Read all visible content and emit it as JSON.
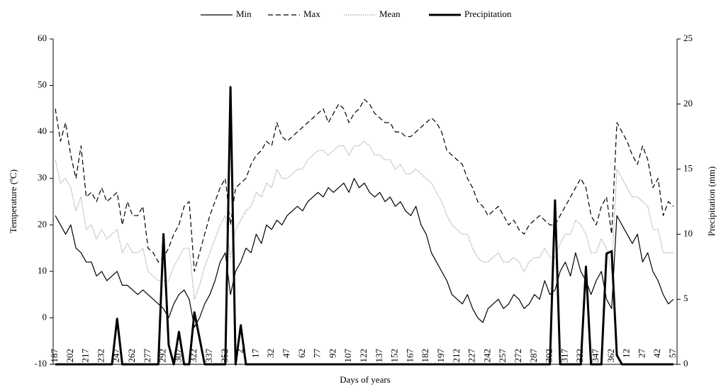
{
  "chart_data": {
    "type": "line",
    "xlabel": "Days of years",
    "ylabel": "Temperature (ºC)",
    "y2label": "Precipitation (mm)",
    "legend": "top",
    "categories": [
      "187",
      null,
      null,
      "202",
      null,
      null,
      "217",
      null,
      null,
      "232",
      null,
      null,
      "247",
      null,
      null,
      "262",
      null,
      null,
      "277",
      null,
      null,
      "292",
      null,
      null,
      "307",
      null,
      null,
      "322",
      null,
      null,
      "337",
      null,
      null,
      "352",
      null,
      null,
      "2",
      null,
      null,
      "17",
      null,
      null,
      "32",
      null,
      null,
      "47",
      null,
      null,
      "62",
      null,
      null,
      "77",
      null,
      null,
      "92",
      null,
      null,
      "107",
      null,
      null,
      "122",
      null,
      null,
      "137",
      null,
      null,
      "152",
      null,
      null,
      "167",
      null,
      null,
      "182",
      null,
      null,
      "197",
      null,
      null,
      "212",
      null,
      null,
      "227",
      null,
      null,
      "242",
      null,
      null,
      "257",
      null,
      null,
      "272",
      null,
      null,
      "287",
      null,
      null,
      "302",
      null,
      null,
      "317",
      null,
      null,
      "332",
      null,
      null,
      "347",
      null,
      null,
      "362",
      null,
      null,
      "12",
      null,
      null,
      "27",
      null,
      null,
      "42",
      null,
      null,
      "57"
    ],
    "ylim": [
      -10,
      60
    ],
    "yticks": [
      -10,
      0,
      10,
      20,
      30,
      40,
      50,
      60
    ],
    "y2lim": [
      0,
      25
    ],
    "y2ticks": [
      0,
      5,
      10,
      15,
      20,
      25
    ],
    "series": [
      {
        "name": "Min",
        "color": "#000000",
        "style": "solid",
        "values": [
          22,
          20,
          18,
          20,
          15,
          14,
          12,
          12,
          9,
          10,
          8,
          9,
          10,
          7,
          7,
          6,
          5,
          6,
          5,
          4,
          3,
          2,
          0,
          3,
          5,
          6,
          4,
          -2,
          0,
          3,
          5,
          8,
          12,
          14,
          5,
          10,
          12,
          15,
          14,
          18,
          16,
          20,
          19,
          21,
          20,
          22,
          23,
          24,
          23,
          25,
          26,
          27,
          26,
          28,
          27,
          28,
          29,
          27,
          30,
          28,
          29,
          27,
          26,
          27,
          25,
          26,
          24,
          25,
          23,
          22,
          24,
          20,
          18,
          14,
          12,
          10,
          8,
          5,
          4,
          3,
          5,
          2,
          0,
          -1,
          2,
          3,
          4,
          2,
          3,
          5,
          4,
          2,
          3,
          5,
          4,
          8,
          5,
          6,
          10,
          12,
          9,
          14,
          10,
          8,
          5,
          8,
          10,
          4,
          2,
          22,
          20,
          18,
          16,
          18,
          12,
          14,
          10,
          8,
          5,
          3,
          4
        ]
      },
      {
        "name": "Max",
        "color": "#000000",
        "style": "dashed",
        "values": [
          45,
          38,
          42,
          35,
          30,
          37,
          26,
          27,
          25,
          28,
          25,
          26,
          27,
          20,
          25,
          22,
          22,
          24,
          15,
          14,
          12,
          13,
          15,
          18,
          20,
          24,
          25,
          10,
          14,
          18,
          22,
          25,
          28,
          30,
          20,
          28,
          29,
          30,
          33,
          35,
          36,
          38,
          37,
          42,
          39,
          38,
          39,
          40,
          41,
          42,
          43,
          44,
          45,
          42,
          44,
          46,
          45,
          42,
          44,
          45,
          47,
          46,
          44,
          43,
          42,
          42,
          40,
          40,
          39,
          39,
          40,
          41,
          42,
          43,
          42,
          40,
          36,
          35,
          34,
          33,
          30,
          28,
          25,
          24,
          22,
          23,
          24,
          22,
          20,
          21,
          19,
          18,
          20,
          21,
          22,
          21,
          20,
          20,
          22,
          24,
          26,
          28,
          30,
          28,
          22,
          20,
          24,
          26,
          18,
          42,
          40,
          38,
          35,
          33,
          37,
          34,
          28,
          30,
          22,
          25,
          24
        ]
      },
      {
        "name": "Mean",
        "color": "#8c8c8c",
        "style": "dotted",
        "values": [
          34,
          29,
          30,
          28,
          23,
          26,
          19,
          20,
          17,
          19,
          17,
          18,
          19,
          14,
          16,
          14,
          14,
          15,
          10,
          9,
          8,
          8,
          8,
          11,
          13,
          15,
          15,
          4,
          7,
          11,
          14,
          17,
          20,
          22,
          13,
          19,
          21,
          23,
          24,
          27,
          26,
          29,
          28,
          32,
          30,
          30,
          31,
          32,
          32,
          34,
          35,
          36,
          36,
          35,
          36,
          37,
          37,
          35,
          37,
          37,
          38,
          37,
          35,
          35,
          34,
          34,
          32,
          33,
          31,
          31,
          32,
          31,
          30,
          29,
          27,
          25,
          22,
          20,
          19,
          18,
          18,
          15,
          13,
          12,
          12,
          13,
          14,
          12,
          12,
          13,
          12,
          10,
          12,
          13,
          13,
          15,
          13,
          13,
          16,
          18,
          18,
          21,
          20,
          18,
          14,
          14,
          17,
          15,
          10,
          32,
          30,
          28,
          26,
          26,
          25,
          24,
          19,
          19,
          14,
          14,
          14
        ]
      },
      {
        "name": "Precipitation",
        "color": "#000000",
        "style": "bold",
        "axis": "y2",
        "values": [
          0,
          0,
          0,
          0,
          0,
          0,
          0,
          0,
          0,
          0,
          0,
          0,
          3.5,
          0,
          0,
          0,
          0,
          0,
          0,
          0,
          0,
          10,
          1.5,
          0,
          2.5,
          0,
          0,
          4,
          2,
          0,
          0,
          0,
          0,
          0,
          21.3,
          0,
          3,
          0,
          0,
          0,
          0,
          0,
          0,
          0,
          0,
          0,
          0,
          0,
          0,
          0,
          0,
          0,
          0,
          0,
          0,
          0,
          0,
          0,
          0,
          0,
          0,
          0,
          0,
          0,
          0,
          0,
          0,
          0,
          0,
          0,
          0,
          0,
          0,
          0,
          0,
          0,
          0,
          0,
          0,
          0,
          0,
          0,
          0,
          0,
          0,
          0,
          0,
          0,
          0,
          0,
          0,
          0,
          0,
          0,
          0,
          0,
          0,
          12.6,
          0,
          0,
          0,
          0,
          0,
          7.5,
          0,
          0,
          0,
          8.5,
          8.7,
          0.7,
          0,
          0,
          0,
          0,
          0,
          0,
          0,
          0,
          0,
          0,
          0
        ]
      }
    ]
  }
}
